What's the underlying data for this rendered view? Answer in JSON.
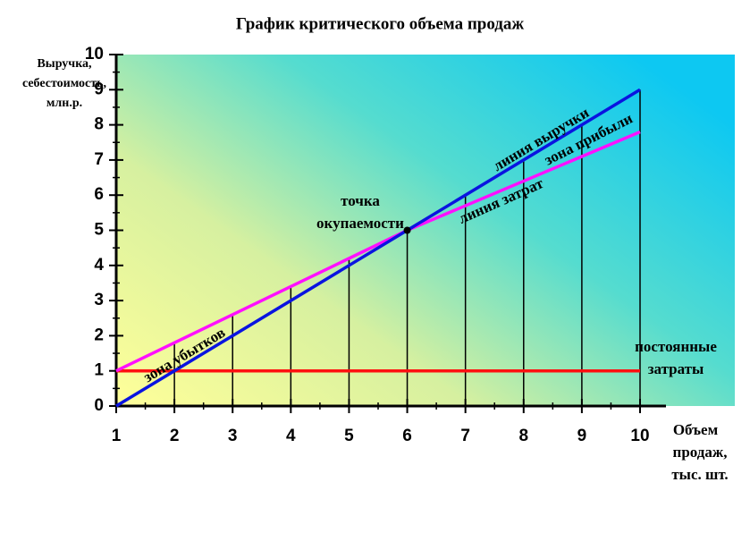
{
  "chart_data": {
    "type": "line",
    "title": "График критического объема продаж",
    "y_label": [
      "Выручка,",
      "себестоимость,",
      "млн.р."
    ],
    "x_label": [
      "Объем",
      "продаж,",
      "тыс. шт."
    ],
    "xlim": [
      1,
      10
    ],
    "ylim": [
      0,
      10
    ],
    "xticks": [
      1,
      2,
      3,
      4,
      5,
      6,
      7,
      8,
      9,
      10
    ],
    "yticks": [
      0,
      1,
      2,
      3,
      4,
      5,
      6,
      7,
      8,
      9,
      10
    ],
    "series": [
      {
        "name": "линия выручки",
        "color": "#0a14e0",
        "x": [
          1,
          10
        ],
        "values": [
          0,
          9
        ]
      },
      {
        "name": "линия затрат",
        "color": "#ff10ff",
        "x": [
          1,
          6,
          10
        ],
        "values": [
          1,
          5,
          7.8
        ]
      },
      {
        "name": "постоянные затраты",
        "color": "#ff1010",
        "x": [
          1,
          10
        ],
        "values": [
          1,
          1
        ]
      }
    ],
    "break_even": {
      "x": 6,
      "y": 5,
      "label": [
        "точка",
        "окупаемости"
      ]
    },
    "annotations": [
      {
        "lines": [
          "зона прибыли"
        ]
      },
      {
        "lines": [
          "зона убытков"
        ]
      },
      {
        "lines": [
          "постоянные",
          "затраты"
        ]
      }
    ]
  }
}
